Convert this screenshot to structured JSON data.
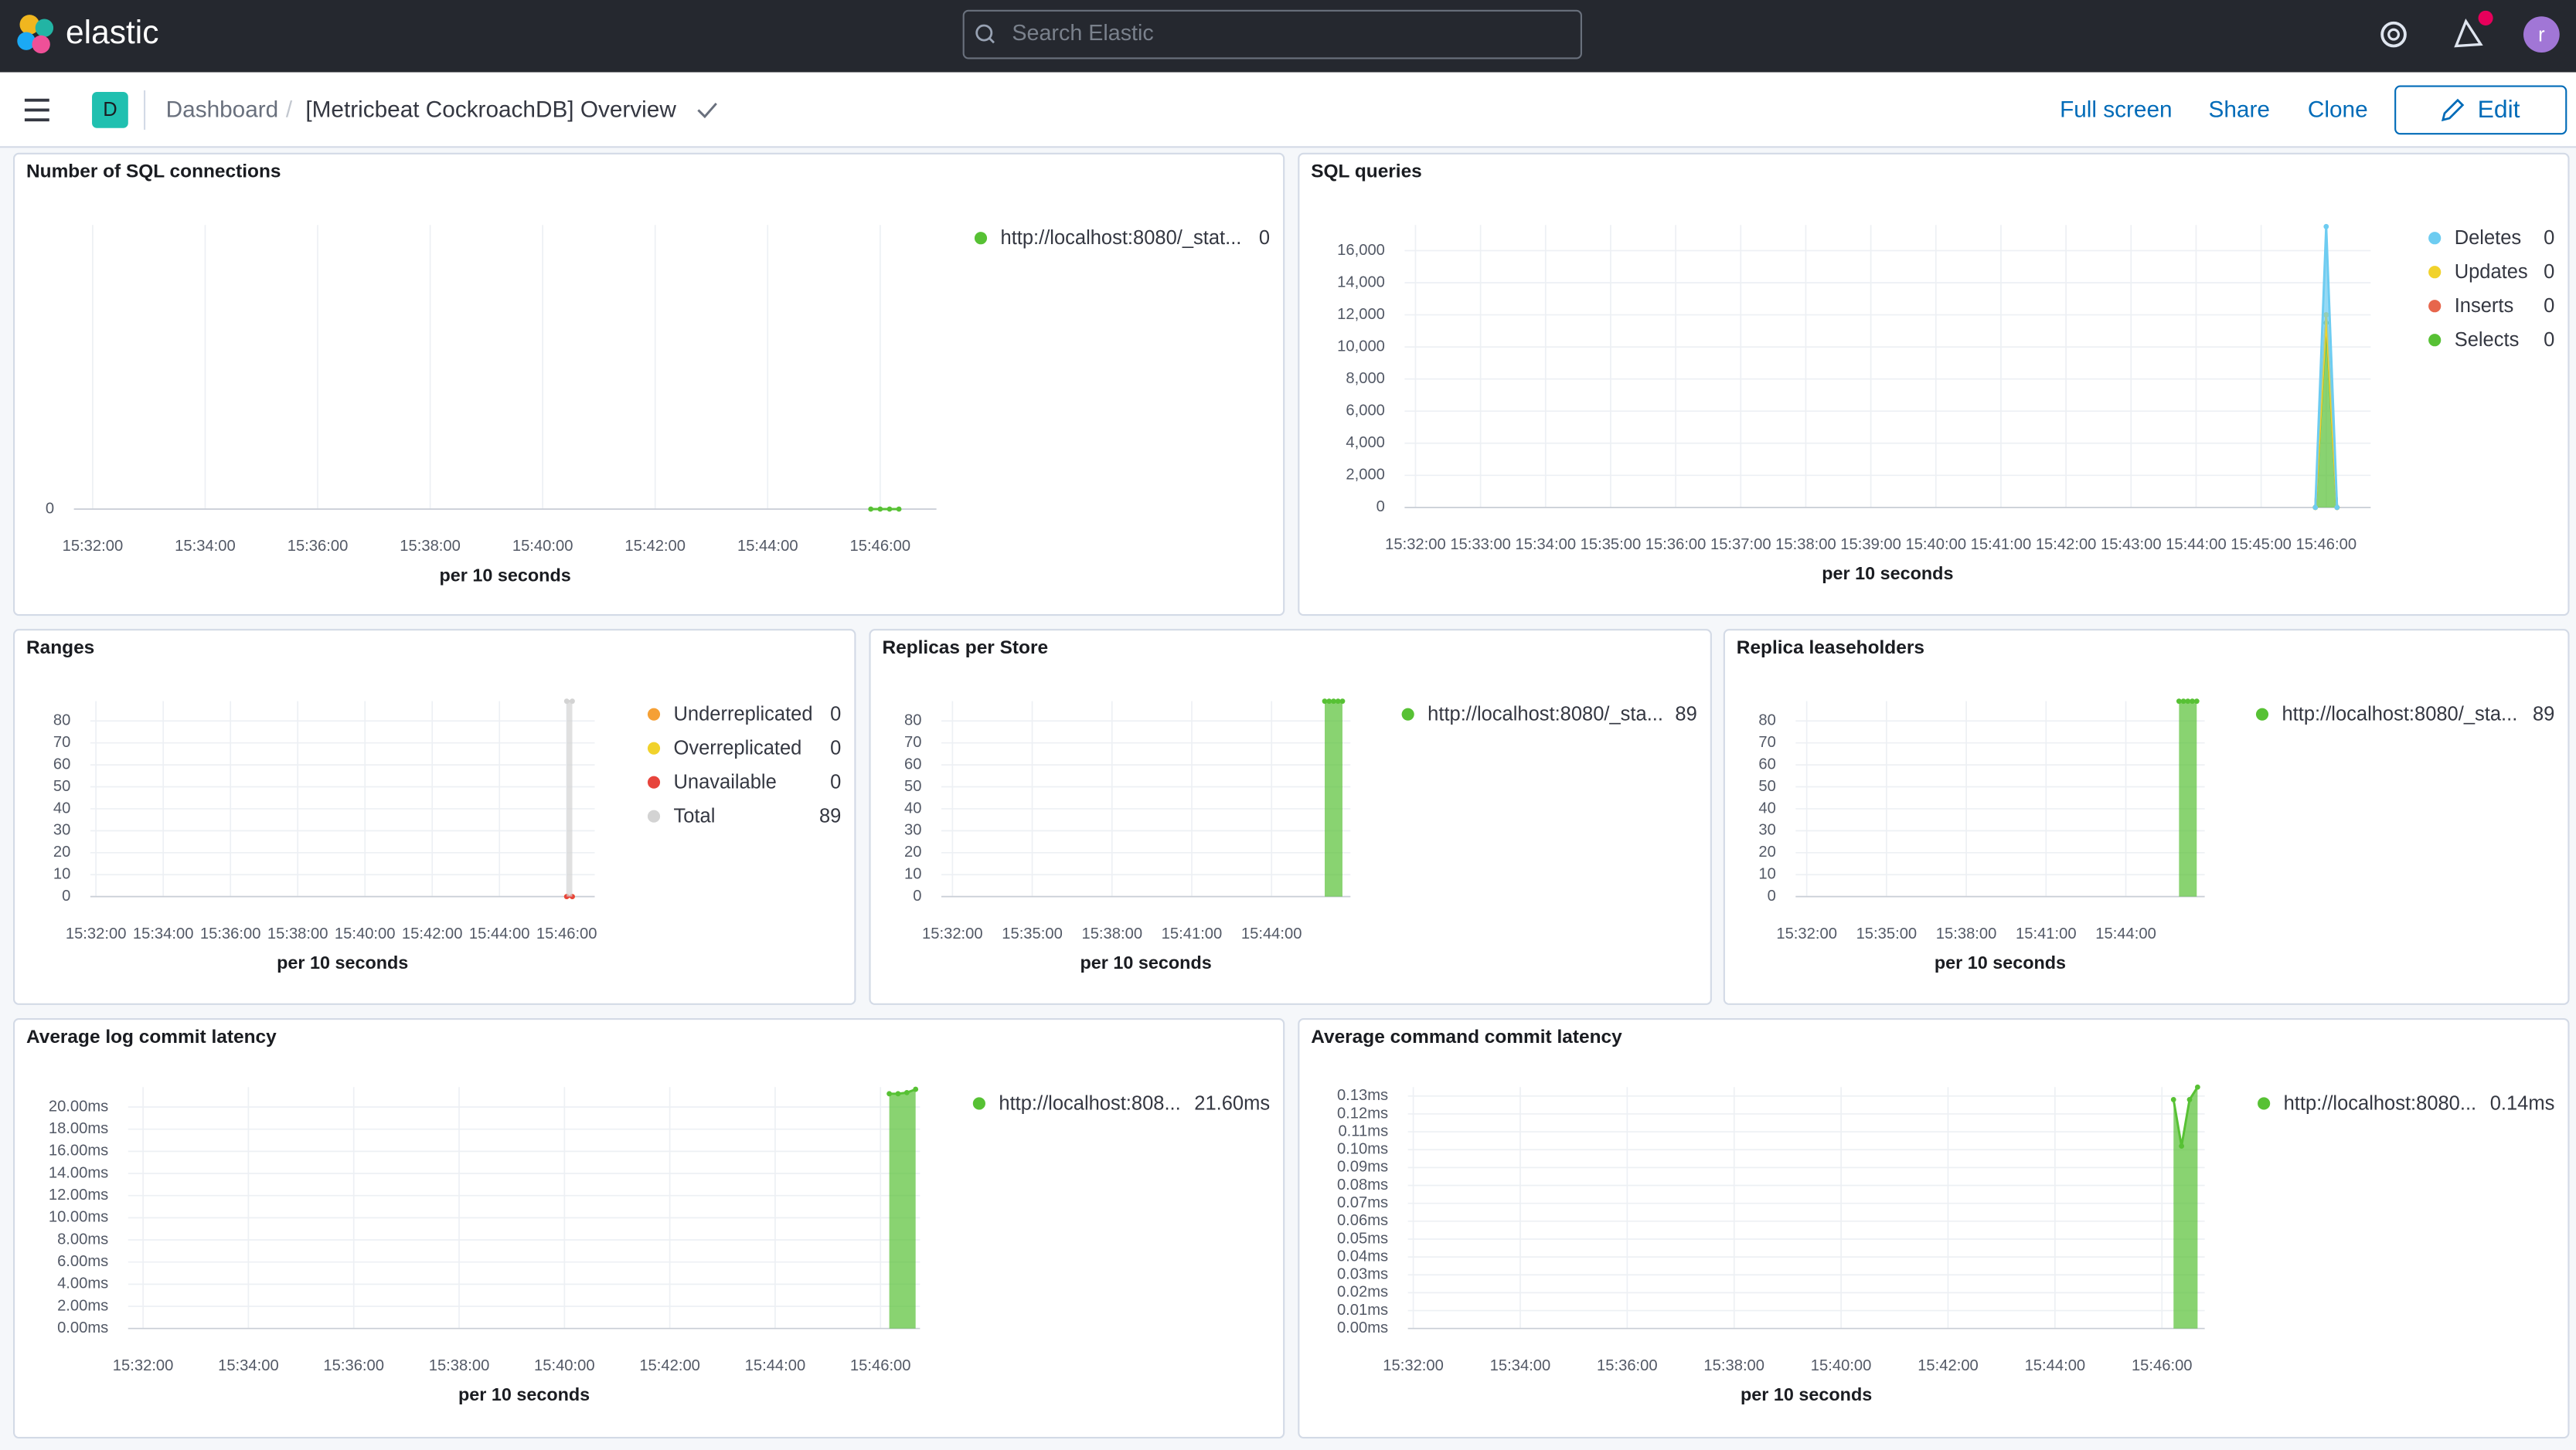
{
  "header": {
    "logo": "elastic",
    "search_placeholder": "Search Elastic",
    "avatar": "r"
  },
  "toolbar": {
    "space": "D",
    "breadcrumbs": [
      "Dashboard",
      "[Metricbeat CockroachDB] Overview"
    ],
    "actions": [
      "Full screen",
      "Share",
      "Clone"
    ],
    "edit": "Edit"
  },
  "panels": [
    {
      "title": "Number of SQL connections",
      "chart_data": {
        "type": "area",
        "x_label": "per 10 seconds",
        "xlim": [
          "15:31:40",
          "15:47:00"
        ],
        "xticks": [
          "15:32:00",
          "15:34:00",
          "15:36:00",
          "15:38:00",
          "15:40:00",
          "15:42:00",
          "15:44:00",
          "15:46:00"
        ],
        "ylim": [
          0,
          1
        ],
        "yticks": [
          0
        ],
        "series": [
          {
            "name": "http://localhost:8080/_stat...",
            "color": "#57c134",
            "legend_value": "0",
            "x": [
              "15:45:50",
              "15:46:00",
              "15:46:10",
              "15:46:20"
            ],
            "values": [
              0,
              0,
              0,
              0
            ]
          }
        ]
      }
    },
    {
      "title": "SQL queries",
      "chart_data": {
        "type": "area",
        "stacked": true,
        "x_label": "per 10 seconds",
        "xlim": [
          "15:31:50",
          "15:46:41"
        ],
        "xticks": [
          "15:32:00",
          "15:33:00",
          "15:34:00",
          "15:35:00",
          "15:36:00",
          "15:37:00",
          "15:38:00",
          "15:39:00",
          "15:40:00",
          "15:41:00",
          "15:42:00",
          "15:43:00",
          "15:44:00",
          "15:45:00",
          "15:46:00"
        ],
        "ylim": [
          0,
          17600
        ],
        "yticks": [
          0,
          {
            "value": 2000,
            "label": "2,000"
          },
          {
            "value": 4000,
            "label": "4,000"
          },
          {
            "value": 6000,
            "label": "6,000"
          },
          {
            "value": 8000,
            "label": "8,000"
          },
          {
            "value": 10000,
            "label": "10,000"
          },
          {
            "value": 12000,
            "label": "12,000"
          },
          {
            "value": 14000,
            "label": "14,000"
          },
          {
            "value": 16000,
            "label": "16,000"
          }
        ],
        "series": [
          {
            "name": "Deletes",
            "color": "#6dccf1",
            "legend_value": "0",
            "x": [
              "15:45:50",
              "15:46:00",
              "15:46:10"
            ],
            "values": [
              0,
              5500,
              0
            ]
          },
          {
            "name": "Updates",
            "color": "#f1d22b",
            "legend_value": "0",
            "x": [
              "15:45:50",
              "15:46:00",
              "15:46:10"
            ],
            "values": [
              0,
              0,
              0
            ]
          },
          {
            "name": "Inserts",
            "color": "#e7664c",
            "legend_value": "0",
            "x": [
              "15:45:50",
              "15:46:00",
              "15:46:10"
            ],
            "values": [
              0,
              500,
              0
            ]
          },
          {
            "name": "Selects",
            "color": "#57c134",
            "legend_value": "0",
            "x": [
              "15:45:50",
              "15:46:00",
              "15:46:10"
            ],
            "values": [
              0,
              11500,
              0
            ]
          }
        ]
      }
    },
    {
      "title": "Ranges",
      "chart_data": {
        "type": "area",
        "x_label": "per 10 seconds",
        "xlim": [
          "15:31:50",
          "15:46:50"
        ],
        "xticks": [
          "15:32:00",
          "15:34:00",
          "15:36:00",
          "15:38:00",
          "15:40:00",
          "15:42:00",
          "15:44:00",
          "15:46:00"
        ],
        "ylim": [
          0,
          89
        ],
        "yticks": [
          0,
          10,
          20,
          30,
          40,
          50,
          60,
          70,
          80
        ],
        "series": [
          {
            "name": "Underreplicated",
            "color": "#f5a035",
            "legend_value": "0",
            "x": [
              "15:46:00",
              "15:46:10"
            ],
            "values": [
              0,
              0
            ]
          },
          {
            "name": "Overreplicated",
            "color": "#f1d22b",
            "legend_value": "0",
            "x": [
              "15:46:00",
              "15:46:10"
            ],
            "values": [
              0,
              0
            ]
          },
          {
            "name": "Unavailable",
            "color": "#e7443c",
            "legend_value": "0",
            "x": [
              "15:46:00",
              "15:46:10"
            ],
            "values": [
              0,
              0
            ]
          },
          {
            "name": "Total",
            "color": "#d3d3d3",
            "legend_value": "89",
            "x": [
              "15:46:00",
              "15:46:10"
            ],
            "values": [
              89,
              89
            ]
          }
        ]
      }
    },
    {
      "title": "Replicas per Store",
      "chart_data": {
        "type": "area",
        "x_label": "per 10 seconds",
        "xlim": [
          "15:31:35",
          "15:46:58"
        ],
        "xticks": [
          "15:32:00",
          "15:35:00",
          "15:38:00",
          "15:41:00",
          "15:44:00"
        ],
        "ylim": [
          0,
          89
        ],
        "yticks": [
          0,
          10,
          20,
          30,
          40,
          50,
          60,
          70,
          80
        ],
        "series": [
          {
            "name": "http://localhost:8080/_sta...",
            "color": "#57c134",
            "legend_value": "89",
            "x": [
              "15:46:00",
              "15:46:10",
              "15:46:20",
              "15:46:30",
              "15:46:40"
            ],
            "values": [
              89,
              89,
              89,
              89,
              89
            ]
          }
        ]
      }
    },
    {
      "title": "Replica leaseholders",
      "chart_data": {
        "type": "area",
        "x_label": "per 10 seconds",
        "xlim": [
          "15:31:35",
          "15:46:58"
        ],
        "xticks": [
          "15:32:00",
          "15:35:00",
          "15:38:00",
          "15:41:00",
          "15:44:00"
        ],
        "ylim": [
          0,
          89
        ],
        "yticks": [
          0,
          10,
          20,
          30,
          40,
          50,
          60,
          70,
          80
        ],
        "series": [
          {
            "name": "http://localhost:8080/_sta...",
            "color": "#57c134",
            "legend_value": "89",
            "x": [
              "15:46:00",
              "15:46:10",
              "15:46:20",
              "15:46:30",
              "15:46:40"
            ],
            "values": [
              89,
              89,
              89,
              89,
              89
            ]
          }
        ]
      }
    },
    {
      "title": "Average log commit latency",
      "chart_data": {
        "type": "area",
        "x_label": "per 10 seconds",
        "xlim": [
          "15:31:43",
          "15:46:45"
        ],
        "xticks": [
          "15:32:00",
          "15:34:00",
          "15:36:00",
          "15:38:00",
          "15:40:00",
          "15:42:00",
          "15:44:00",
          "15:46:00"
        ],
        "ylim": [
          0,
          21.8
        ],
        "yticks": [
          {
            "value": 0,
            "label": "0.00ms"
          },
          {
            "value": 2,
            "label": "2.00ms"
          },
          {
            "value": 4,
            "label": "4.00ms"
          },
          {
            "value": 6,
            "label": "6.00ms"
          },
          {
            "value": 8,
            "label": "8.00ms"
          },
          {
            "value": 10,
            "label": "10.00ms"
          },
          {
            "value": 12,
            "label": "12.00ms"
          },
          {
            "value": 14,
            "label": "14.00ms"
          },
          {
            "value": 16,
            "label": "16.00ms"
          },
          {
            "value": 18,
            "label": "18.00ms"
          },
          {
            "value": 20,
            "label": "20.00ms"
          }
        ],
        "series": [
          {
            "name": "http://localhost:808...",
            "color": "#57c134",
            "legend_value": "21.60ms",
            "x": [
              "15:46:10",
              "15:46:20",
              "15:46:30",
              "15:46:40"
            ],
            "values": [
              21.2,
              21.2,
              21.3,
              21.6
            ]
          }
        ]
      }
    },
    {
      "title": "Average command commit latency",
      "chart_data": {
        "type": "area",
        "x_label": "per 10 seconds",
        "xlim": [
          "15:31:54",
          "15:46:48"
        ],
        "xticks": [
          "15:32:00",
          "15:34:00",
          "15:36:00",
          "15:38:00",
          "15:40:00",
          "15:42:00",
          "15:44:00",
          "15:46:00"
        ],
        "ylim": [
          0,
          0.135
        ],
        "yticks": [
          {
            "value": 0,
            "label": "0.00ms"
          },
          {
            "value": 0.01,
            "label": "0.01ms"
          },
          {
            "value": 0.02,
            "label": "0.02ms"
          },
          {
            "value": 0.03,
            "label": "0.03ms"
          },
          {
            "value": 0.04,
            "label": "0.04ms"
          },
          {
            "value": 0.05,
            "label": "0.05ms"
          },
          {
            "value": 0.06,
            "label": "0.06ms"
          },
          {
            "value": 0.07,
            "label": "0.07ms"
          },
          {
            "value": 0.08,
            "label": "0.08ms"
          },
          {
            "value": 0.09,
            "label": "0.09ms"
          },
          {
            "value": 0.1,
            "label": "0.10ms"
          },
          {
            "value": 0.11,
            "label": "0.11ms"
          },
          {
            "value": 0.12,
            "label": "0.12ms"
          },
          {
            "value": 0.13,
            "label": "0.13ms"
          }
        ],
        "series": [
          {
            "name": "http://localhost:8080...",
            "color": "#57c134",
            "legend_value": "0.14ms",
            "x": [
              "15:46:13",
              "15:46:22",
              "15:46:31",
              "15:46:40"
            ],
            "values": [
              0.128,
              0.102,
              0.128,
              0.135
            ]
          }
        ]
      }
    }
  ]
}
